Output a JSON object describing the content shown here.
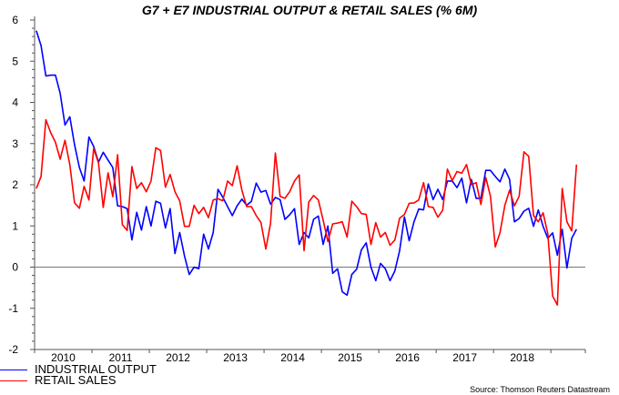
{
  "chart_data": {
    "type": "line",
    "title": "G7 + E7 INDUSTRIAL OUTPUT & RETAIL SALES (% 6M)",
    "xlabel": "",
    "ylabel": "",
    "ylim": [
      -2,
      6
    ],
    "xlim": [
      2010.0,
      2019.6
    ],
    "yticks": [
      "-2",
      "-1",
      "0",
      "1",
      "2",
      "3",
      "4",
      "5",
      "6"
    ],
    "xtick_labels": [
      "2010",
      "2011",
      "2012",
      "2013",
      "2014",
      "2015",
      "2016",
      "2017",
      "2018"
    ],
    "x_start": 2010.03,
    "x_step_months": 1,
    "zero_line": true,
    "legend_position": "bottom-left",
    "series": [
      {
        "name": "INDUSTRIAL OUTPUT",
        "color": "#0000ff",
        "values": [
          5.74,
          5.38,
          4.64,
          4.66,
          4.66,
          4.22,
          3.45,
          3.65,
          2.97,
          2.42,
          2.09,
          3.16,
          2.93,
          2.55,
          2.79,
          2.6,
          2.42,
          1.49,
          1.47,
          1.42,
          0.66,
          1.33,
          0.9,
          1.47,
          1.0,
          1.6,
          1.55,
          0.95,
          1.42,
          0.33,
          0.84,
          0.27,
          -0.18,
          0.0,
          -0.04,
          0.8,
          0.44,
          0.84,
          1.89,
          1.7,
          1.47,
          1.25,
          1.49,
          1.65,
          1.5,
          1.6,
          2.04,
          1.82,
          1.86,
          1.53,
          1.69,
          1.64,
          1.16,
          1.27,
          1.42,
          0.55,
          0.84,
          0.71,
          1.16,
          1.24,
          0.55,
          1.0,
          -0.15,
          -0.04,
          -0.6,
          -0.68,
          -0.18,
          -0.05,
          0.42,
          0.59,
          0.0,
          -0.33,
          0.09,
          -0.04,
          -0.33,
          -0.09,
          0.4,
          1.22,
          0.64,
          1.1,
          1.41,
          1.39,
          2.02,
          1.64,
          1.89,
          1.64,
          2.09,
          2.09,
          1.93,
          2.16,
          1.56,
          2.13,
          1.67,
          1.67,
          2.35,
          2.35,
          2.2,
          2.07,
          2.38,
          2.13,
          1.1,
          1.18,
          1.36,
          1.43,
          0.99,
          1.39,
          0.99,
          0.7,
          0.83,
          0.29,
          0.92,
          -0.02,
          0.7,
          0.92
        ]
      },
      {
        "name": "RETAIL SALES",
        "color": "#ff0000",
        "values": [
          1.91,
          2.2,
          3.58,
          3.27,
          3.03,
          2.62,
          3.08,
          2.49,
          1.56,
          1.43,
          1.96,
          1.63,
          2.88,
          2.53,
          1.45,
          2.29,
          1.71,
          2.73,
          1.03,
          0.89,
          2.44,
          1.91,
          2.05,
          1.83,
          2.09,
          2.9,
          2.83,
          1.94,
          2.25,
          1.83,
          1.61,
          0.99,
          0.99,
          1.5,
          1.3,
          1.45,
          1.2,
          1.63,
          1.66,
          1.61,
          2.09,
          1.98,
          2.46,
          1.87,
          1.47,
          1.47,
          1.25,
          1.08,
          0.44,
          1.06,
          2.77,
          1.72,
          1.67,
          1.83,
          2.09,
          2.24,
          0.4,
          1.58,
          1.74,
          1.63,
          1.14,
          0.62,
          1.05,
          1.07,
          1.1,
          0.73,
          1.6,
          1.47,
          1.3,
          1.28,
          0.55,
          1.08,
          0.73,
          0.84,
          0.53,
          0.66,
          1.19,
          1.28,
          1.55,
          1.56,
          1.63,
          2.05,
          1.47,
          1.45,
          1.21,
          1.38,
          2.38,
          2.1,
          2.32,
          2.28,
          2.49,
          2.0,
          2.05,
          1.52,
          2.18,
          1.72,
          0.49,
          0.84,
          1.5,
          1.87,
          1.49,
          1.72,
          2.8,
          2.69,
          1.25,
          1.1,
          1.32,
          0.81,
          -0.7,
          -0.92,
          1.91,
          1.1,
          0.88,
          2.49
        ]
      }
    ],
    "source": "Source: Thomson Reuters Datastream"
  }
}
